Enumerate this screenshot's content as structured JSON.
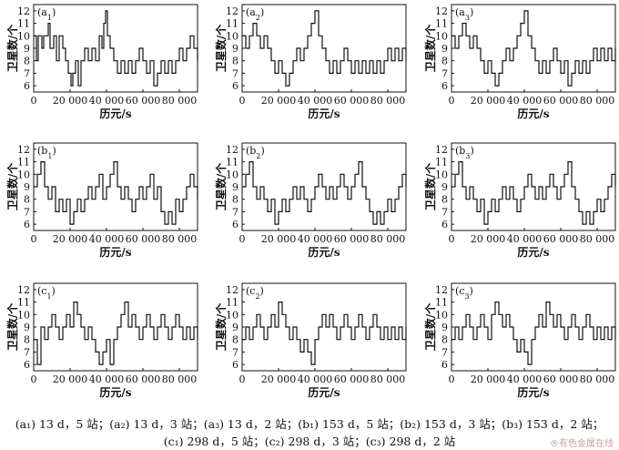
{
  "chart_data": [
    {
      "type": "line",
      "panel_label": "a",
      "panel_sub": "1",
      "xlabel": "历元/s",
      "ylabel": "卫星数/个",
      "xlim": [
        0,
        90000
      ],
      "ylim": [
        5.5,
        12.5
      ],
      "x_ticks": [
        "0",
        "20 000",
        "40 000",
        "60 000",
        "80 000"
      ],
      "y_ticks": [
        "6",
        "7",
        "8",
        "9",
        "10",
        "11",
        "12"
      ],
      "series": [
        {
          "x": [
            0,
            1500,
            2500,
            4500,
            5500,
            8000,
            9000,
            11000,
            12500,
            14000,
            16000,
            17500,
            19000,
            20500,
            21500,
            23000,
            24500,
            26000,
            28000,
            30000,
            32000,
            34000,
            36000,
            37500,
            38500,
            39500,
            40500,
            42000,
            44000,
            46000,
            48000,
            50000,
            52000,
            54000,
            56000,
            58000,
            60000,
            62000,
            64000,
            66000,
            68000,
            70000,
            72000,
            74000,
            76000,
            78000,
            80000,
            82000,
            84000,
            86000,
            88000,
            90000
          ],
          "y": [
            10,
            8,
            10,
            9,
            10,
            11,
            9,
            10,
            8,
            10,
            9,
            8,
            7,
            6,
            7,
            8,
            6,
            8,
            9,
            8,
            9,
            8,
            10,
            9,
            11,
            12,
            10,
            9,
            8,
            7,
            8,
            7,
            8,
            7,
            8,
            9,
            8,
            7,
            8,
            6,
            7,
            8,
            7,
            8,
            7,
            8,
            9,
            8,
            9,
            10,
            9,
            8
          ]
        }
      ]
    },
    {
      "type": "line",
      "panel_label": "a",
      "panel_sub": "2",
      "xlabel": "历元/s",
      "ylabel": "卫星数/个",
      "xlim": [
        0,
        90000
      ],
      "ylim": [
        5.5,
        12.5
      ],
      "x_ticks": [
        "0",
        "20 000",
        "40 000",
        "60 000",
        "80 000"
      ],
      "y_ticks": [
        "6",
        "7",
        "8",
        "9",
        "10",
        "11",
        "12"
      ],
      "series": [
        {
          "x": [
            0,
            2000,
            4000,
            6000,
            8000,
            10000,
            12000,
            14000,
            16000,
            18000,
            20000,
            22000,
            24000,
            26000,
            28000,
            30000,
            32000,
            34000,
            36000,
            38000,
            40000,
            42000,
            44000,
            46000,
            48000,
            50000,
            52000,
            54000,
            56000,
            58000,
            60000,
            62000,
            64000,
            66000,
            68000,
            70000,
            72000,
            74000,
            76000,
            78000,
            80000,
            82000,
            84000,
            86000,
            88000,
            90000
          ],
          "y": [
            10,
            9,
            10,
            11,
            10,
            9,
            10,
            9,
            8,
            7,
            8,
            7,
            6,
            7,
            8,
            9,
            8,
            9,
            10,
            11,
            12,
            10,
            9,
            8,
            7,
            8,
            7,
            8,
            9,
            8,
            7,
            8,
            7,
            8,
            7,
            8,
            7,
            8,
            7,
            8,
            9,
            8,
            9,
            8,
            9,
            8
          ]
        }
      ]
    },
    {
      "type": "line",
      "panel_label": "a",
      "panel_sub": "3",
      "xlabel": "历元/s",
      "ylabel": "卫星数/个",
      "xlim": [
        0,
        90000
      ],
      "ylim": [
        5.5,
        12.5
      ],
      "x_ticks": [
        "0",
        "20 000",
        "40 000",
        "60 000",
        "80 000"
      ],
      "y_ticks": [
        "6",
        "7",
        "8",
        "9",
        "10",
        "11",
        "12"
      ],
      "series": [
        {
          "x": [
            0,
            2000,
            4000,
            6000,
            8000,
            10000,
            12000,
            14000,
            16000,
            18000,
            20000,
            22000,
            24000,
            26000,
            28000,
            30000,
            32000,
            34000,
            36000,
            38000,
            40000,
            42000,
            44000,
            46000,
            48000,
            50000,
            52000,
            54000,
            56000,
            58000,
            60000,
            62000,
            64000,
            66000,
            68000,
            70000,
            72000,
            74000,
            76000,
            78000,
            80000,
            82000,
            84000,
            86000,
            88000,
            90000
          ],
          "y": [
            10,
            9,
            10,
            11,
            10,
            9,
            10,
            9,
            8,
            7,
            8,
            7,
            6,
            7,
            8,
            9,
            8,
            9,
            10,
            11,
            12,
            10,
            9,
            8,
            7,
            8,
            7,
            8,
            9,
            8,
            7,
            8,
            6,
            7,
            8,
            7,
            8,
            7,
            8,
            9,
            8,
            9,
            8,
            9,
            8,
            9
          ]
        }
      ]
    },
    {
      "type": "line",
      "panel_label": "b",
      "panel_sub": "1",
      "xlabel": "历元/s",
      "ylabel": "卫星数/个",
      "xlim": [
        0,
        90000
      ],
      "ylim": [
        5.5,
        12.5
      ],
      "x_ticks": [
        "0",
        "20 000",
        "40 000",
        "60 000",
        "80 000"
      ],
      "y_ticks": [
        "6",
        "7",
        "8",
        "9",
        "10",
        "11",
        "12"
      ],
      "series": [
        {
          "x": [
            0,
            2000,
            4000,
            6000,
            8000,
            10000,
            12000,
            14000,
            16000,
            18000,
            20000,
            22000,
            24000,
            26000,
            28000,
            30000,
            32000,
            34000,
            36000,
            38000,
            40000,
            42000,
            44000,
            46000,
            48000,
            50000,
            52000,
            54000,
            56000,
            58000,
            60000,
            62000,
            64000,
            66000,
            68000,
            70000,
            72000,
            74000,
            76000,
            78000,
            80000,
            82000,
            84000,
            86000,
            88000,
            90000
          ],
          "y": [
            9,
            10,
            11,
            9,
            8,
            9,
            7,
            8,
            7,
            8,
            6,
            7,
            8,
            7,
            8,
            9,
            8,
            9,
            10,
            8,
            9,
            10,
            11,
            9,
            8,
            9,
            8,
            7,
            8,
            9,
            8,
            9,
            10,
            8,
            9,
            7,
            6,
            7,
            6,
            8,
            7,
            8,
            9,
            10,
            9,
            8
          ]
        }
      ]
    },
    {
      "type": "line",
      "panel_label": "b",
      "panel_sub": "2",
      "xlabel": "历元/s",
      "ylabel": "卫星数/个",
      "xlim": [
        0,
        90000
      ],
      "ylim": [
        5.5,
        12.5
      ],
      "x_ticks": [
        "0",
        "20 000",
        "40 000",
        "60 000",
        "80 000"
      ],
      "y_ticks": [
        "6",
        "7",
        "8",
        "9",
        "10",
        "11",
        "12"
      ],
      "series": [
        {
          "x": [
            0,
            2000,
            4000,
            6000,
            8000,
            10000,
            12000,
            14000,
            16000,
            18000,
            20000,
            22000,
            24000,
            26000,
            28000,
            30000,
            32000,
            34000,
            36000,
            38000,
            40000,
            42000,
            44000,
            46000,
            48000,
            50000,
            52000,
            54000,
            56000,
            58000,
            60000,
            62000,
            64000,
            66000,
            68000,
            70000,
            72000,
            74000,
            76000,
            78000,
            80000,
            82000,
            84000,
            86000,
            88000,
            90000
          ],
          "y": [
            9,
            10,
            11,
            9,
            8,
            9,
            8,
            7,
            8,
            6,
            7,
            8,
            7,
            8,
            9,
            8,
            9,
            8,
            7,
            8,
            9,
            10,
            9,
            8,
            9,
            8,
            9,
            10,
            9,
            8,
            9,
            10,
            11,
            9,
            8,
            7,
            6,
            7,
            6,
            7,
            8,
            7,
            8,
            9,
            10,
            9
          ]
        }
      ]
    },
    {
      "type": "line",
      "panel_label": "b",
      "panel_sub": "3",
      "xlabel": "历元/s",
      "ylabel": "卫星数/个",
      "xlim": [
        0,
        90000
      ],
      "ylim": [
        5.5,
        12.5
      ],
      "x_ticks": [
        "0",
        "20 000",
        "40 000",
        "60 000",
        "80 000"
      ],
      "y_ticks": [
        "6",
        "7",
        "8",
        "9",
        "10",
        "11",
        "12"
      ],
      "series": [
        {
          "x": [
            0,
            2000,
            4000,
            6000,
            8000,
            10000,
            12000,
            14000,
            16000,
            18000,
            20000,
            22000,
            24000,
            26000,
            28000,
            30000,
            32000,
            34000,
            36000,
            38000,
            40000,
            42000,
            44000,
            46000,
            48000,
            50000,
            52000,
            54000,
            56000,
            58000,
            60000,
            62000,
            64000,
            66000,
            68000,
            70000,
            72000,
            74000,
            76000,
            78000,
            80000,
            82000,
            84000,
            86000,
            88000,
            90000
          ],
          "y": [
            9,
            10,
            11,
            9,
            8,
            9,
            8,
            7,
            8,
            6,
            7,
            8,
            7,
            8,
            9,
            8,
            9,
            8,
            7,
            8,
            9,
            10,
            9,
            8,
            9,
            8,
            9,
            10,
            9,
            8,
            9,
            10,
            11,
            9,
            8,
            7,
            6,
            7,
            6,
            7,
            8,
            7,
            8,
            9,
            10,
            9
          ]
        }
      ]
    },
    {
      "type": "line",
      "panel_label": "c",
      "panel_sub": "1",
      "xlabel": "历元/s",
      "ylabel": "卫星数/个",
      "xlim": [
        0,
        90000
      ],
      "ylim": [
        5.5,
        12.5
      ],
      "x_ticks": [
        "0",
        "20 000",
        "40 000",
        "60 000",
        "80 000"
      ],
      "y_ticks": [
        "6",
        "7",
        "8",
        "9",
        "10",
        "11",
        "12"
      ],
      "series": [
        {
          "x": [
            0,
            2000,
            4000,
            6000,
            8000,
            10000,
            12000,
            14000,
            16000,
            18000,
            20000,
            22000,
            24000,
            26000,
            28000,
            30000,
            32000,
            34000,
            36000,
            38000,
            40000,
            42000,
            44000,
            46000,
            48000,
            50000,
            52000,
            54000,
            56000,
            58000,
            60000,
            62000,
            64000,
            66000,
            68000,
            70000,
            72000,
            74000,
            76000,
            78000,
            80000,
            82000,
            84000,
            86000,
            88000,
            90000
          ],
          "y": [
            8,
            6,
            9,
            8,
            9,
            10,
            9,
            8,
            9,
            10,
            9,
            11,
            10,
            9,
            8,
            9,
            8,
            7,
            6,
            7,
            8,
            6,
            8,
            9,
            10,
            11,
            9,
            10,
            9,
            8,
            9,
            10,
            9,
            8,
            9,
            10,
            9,
            8,
            9,
            10,
            9,
            8,
            9,
            8,
            9,
            8
          ]
        }
      ]
    },
    {
      "type": "line",
      "panel_label": "c",
      "panel_sub": "2",
      "xlabel": "历元/s",
      "ylabel": "卫星数/个",
      "xlim": [
        0,
        90000
      ],
      "ylim": [
        5.5,
        12.5
      ],
      "x_ticks": [
        "0",
        "20 000",
        "40 000",
        "60 000",
        "80 000"
      ],
      "y_ticks": [
        "6",
        "7",
        "8",
        "9",
        "10",
        "11",
        "12"
      ],
      "series": [
        {
          "x": [
            0,
            2000,
            4000,
            6000,
            8000,
            10000,
            12000,
            14000,
            16000,
            18000,
            20000,
            22000,
            24000,
            26000,
            28000,
            30000,
            32000,
            34000,
            36000,
            38000,
            40000,
            42000,
            44000,
            46000,
            48000,
            50000,
            52000,
            54000,
            56000,
            58000,
            60000,
            62000,
            64000,
            66000,
            68000,
            70000,
            72000,
            74000,
            76000,
            78000,
            80000,
            82000,
            84000,
            86000,
            88000,
            90000
          ],
          "y": [
            8,
            9,
            8,
            9,
            10,
            9,
            8,
            9,
            10,
            9,
            11,
            10,
            9,
            8,
            9,
            8,
            7,
            8,
            7,
            6,
            8,
            9,
            10,
            9,
            10,
            9,
            8,
            9,
            10,
            9,
            8,
            9,
            10,
            9,
            8,
            9,
            10,
            9,
            8,
            9,
            8,
            9,
            8,
            9,
            8,
            9
          ]
        }
      ]
    },
    {
      "type": "line",
      "panel_label": "c",
      "panel_sub": "3",
      "xlabel": "历元/s",
      "ylabel": "卫星数/个",
      "xlim": [
        0,
        90000
      ],
      "ylim": [
        5.5,
        12.5
      ],
      "x_ticks": [
        "0",
        "20 000",
        "40 000",
        "60 000",
        "80 000"
      ],
      "y_ticks": [
        "6",
        "7",
        "8",
        "9",
        "10",
        "11",
        "12"
      ],
      "series": [
        {
          "x": [
            0,
            2000,
            4000,
            6000,
            8000,
            10000,
            12000,
            14000,
            16000,
            18000,
            20000,
            22000,
            24000,
            26000,
            28000,
            30000,
            32000,
            34000,
            36000,
            38000,
            40000,
            42000,
            44000,
            46000,
            48000,
            50000,
            52000,
            54000,
            56000,
            58000,
            60000,
            62000,
            64000,
            66000,
            68000,
            70000,
            72000,
            74000,
            76000,
            78000,
            80000,
            82000,
            84000,
            86000,
            88000,
            90000
          ],
          "y": [
            8,
            9,
            8,
            9,
            10,
            9,
            8,
            9,
            10,
            9,
            8,
            10,
            11,
            10,
            9,
            10,
            9,
            8,
            7,
            8,
            7,
            6,
            8,
            9,
            10,
            9,
            11,
            10,
            9,
            10,
            9,
            8,
            9,
            10,
            9,
            8,
            9,
            10,
            9,
            8,
            9,
            8,
            9,
            8,
            9,
            8
          ]
        }
      ]
    }
  ],
  "caption": {
    "line1": "(a₁) 13 d，5 站；(a₂) 13 d，3 站；(a₃) 13 d，2 站；(b₁) 153 d，5 站；(b₂) 153 d，3 站；(b₃) 153 d，2 站；",
    "line2": "(c₁) 298 d，5 站；(c₂) 298 d，3 站；(c₃) 298 d，2 站"
  },
  "watermark": "®有色金属在线",
  "colors": {
    "line": "#111111",
    "axis": "#111111",
    "background": "#ffffff",
    "watermark": "#c9a0a0"
  }
}
